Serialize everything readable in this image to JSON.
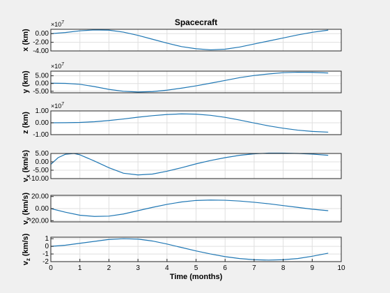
{
  "chart_data": [
    {
      "type": "line",
      "title": "Spacecraft",
      "ylabel": "x (km)",
      "xlabel": "",
      "exponent": "×10^7",
      "y_ticks": [
        "0.00",
        "-2.00",
        "-4.00"
      ],
      "y_tick_values": [
        0,
        -20000000,
        -40000000
      ],
      "ylim": [
        -40000000,
        10000000
      ],
      "xlim": [
        0,
        10
      ],
      "grid": true,
      "x": [
        0,
        0.5,
        1,
        1.5,
        2,
        2.5,
        3,
        3.5,
        4,
        4.5,
        5,
        5.5,
        6,
        6.5,
        7,
        7.5,
        8,
        8.5,
        9,
        9.55
      ],
      "y": [
        0,
        2500000,
        6500000,
        8500000,
        8000000,
        3500000,
        -4000000,
        -13000000,
        -22000000,
        -30000000,
        -35000000,
        -37500000,
        -36000000,
        -31000000,
        -24000000,
        -17000000,
        -10000000,
        -3000000,
        3000000,
        8000000
      ]
    },
    {
      "type": "line",
      "title": "",
      "ylabel": "y (km)",
      "xlabel": "",
      "exponent": "×10^7",
      "y_ticks": [
        "5.00",
        "0.00",
        "-5.00"
      ],
      "y_tick_values": [
        50000000,
        0,
        -50000000
      ],
      "ylim": [
        -60000000,
        80000000
      ],
      "xlim": [
        0,
        10
      ],
      "grid": true,
      "x": [
        0,
        0.5,
        1,
        1.5,
        2,
        2.5,
        3,
        3.5,
        4,
        4.5,
        5,
        5.5,
        6,
        6.5,
        7,
        7.5,
        8,
        8.5,
        9,
        9.55
      ],
      "y": [
        2000000,
        1000000,
        -5000000,
        -20000000,
        -38000000,
        -50000000,
        -55000000,
        -52000000,
        -43000000,
        -30000000,
        -15000000,
        2000000,
        20000000,
        38000000,
        52000000,
        62000000,
        70000000,
        73000000,
        72000000,
        68000000
      ]
    },
    {
      "type": "line",
      "title": "",
      "ylabel": "z (km)",
      "xlabel": "",
      "exponent": "×10^7",
      "y_ticks": [
        "1.00",
        "0.00",
        "-1.00"
      ],
      "y_tick_values": [
        10000000,
        0,
        -10000000
      ],
      "ylim": [
        -10000000,
        10000000
      ],
      "xlim": [
        0,
        10
      ],
      "grid": true,
      "x": [
        0,
        0.5,
        1,
        1.5,
        2,
        2.5,
        3,
        3.5,
        4,
        4.5,
        5,
        5.5,
        6,
        6.5,
        7,
        7.5,
        8,
        8.5,
        9,
        9.55
      ],
      "y": [
        0,
        50000,
        300000,
        900000,
        1900000,
        3200000,
        4700000,
        6000000,
        7000000,
        7500000,
        7300000,
        6300000,
        4600000,
        2300000,
        -200000,
        -2600000,
        -4600000,
        -6200000,
        -7300000,
        -7900000
      ]
    },
    {
      "type": "line",
      "title": "",
      "ylabel": "v_x (km/s)",
      "xlabel": "",
      "exponent": "",
      "y_ticks": [
        "5.00",
        "0.00",
        "-5.00",
        "-10.00"
      ],
      "y_tick_values": [
        5,
        0,
        -5,
        -10
      ],
      "ylim": [
        -10,
        5
      ],
      "xlim": [
        0,
        10
      ],
      "grid": true,
      "x": [
        0,
        0.25,
        0.5,
        0.8,
        1,
        1.5,
        2,
        2.5,
        3,
        3.5,
        4,
        4.5,
        5,
        5.5,
        6,
        6.5,
        7,
        7.5,
        8,
        8.5,
        9,
        9.55
      ],
      "y": [
        -1.5,
        2.5,
        4.5,
        5,
        4.2,
        0.5,
        -3.5,
        -6.8,
        -7.8,
        -7.3,
        -5.6,
        -3.5,
        -1.2,
        0.8,
        2.5,
        3.9,
        4.8,
        5.2,
        5.2,
        5,
        4.6,
        3.9
      ]
    },
    {
      "type": "line",
      "title": "",
      "ylabel": "v_y (km/s)",
      "xlabel": "",
      "exponent": "",
      "y_ticks": [
        "20.00",
        "0.00",
        "-20.00"
      ],
      "y_tick_values": [
        20,
        0,
        -20
      ],
      "ylim": [
        -22,
        22
      ],
      "xlim": [
        0,
        10
      ],
      "grid": true,
      "x": [
        0,
        0.5,
        1,
        1.5,
        2,
        2.5,
        3,
        3.5,
        4,
        4.5,
        5,
        5.5,
        6,
        6.5,
        7,
        7.5,
        8,
        8.5,
        9,
        9.55
      ],
      "y": [
        0,
        -6,
        -11,
        -13,
        -12.5,
        -9,
        -3.5,
        2,
        7,
        11,
        13.5,
        14.2,
        13.8,
        12.5,
        10.5,
        8,
        5,
        2,
        -1,
        -3.5
      ]
    },
    {
      "type": "line",
      "title": "",
      "ylabel": "v_z (km/s)",
      "xlabel": "Time (months)",
      "exponent": "",
      "y_ticks": [
        "1",
        "0",
        "-1",
        "-2"
      ],
      "y_tick_values": [
        1,
        0,
        -1,
        -2
      ],
      "x_ticks": [
        "0",
        "1",
        "2",
        "3",
        "4",
        "5",
        "6",
        "7",
        "8",
        "9",
        "10"
      ],
      "x_tick_values": [
        0,
        1,
        2,
        3,
        4,
        5,
        6,
        7,
        8,
        9,
        10
      ],
      "ylim": [
        -2,
        1.2
      ],
      "xlim": [
        0,
        10
      ],
      "grid": true,
      "x": [
        0,
        0.5,
        1,
        1.5,
        2,
        2.5,
        3,
        3.5,
        4,
        4.5,
        5,
        5.5,
        6,
        6.5,
        7,
        7.5,
        8,
        8.5,
        9,
        9.55
      ],
      "y": [
        0,
        0.15,
        0.4,
        0.65,
        0.9,
        1.0,
        0.95,
        0.7,
        0.3,
        -0.15,
        -0.6,
        -1.0,
        -1.35,
        -1.6,
        -1.75,
        -1.8,
        -1.75,
        -1.6,
        -1.3,
        -0.9
      ]
    }
  ]
}
